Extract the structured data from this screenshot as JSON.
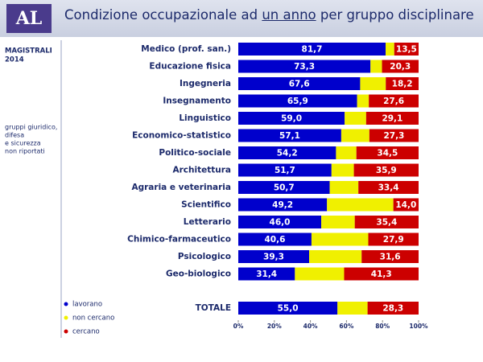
{
  "logo": "AL",
  "chart_data": {
    "type": "stacked_barh",
    "title_parts": [
      "Condizione occupazionale ad",
      "un anno",
      "per gruppo disciplinare"
    ],
    "note_top": [
      "MAGISTRALI",
      "2014"
    ],
    "note_side": [
      "gruppi giuridico,",
      "difesa",
      "e sicurezza",
      "non riportati"
    ],
    "categories": [
      "Medico (prof. san.)",
      "Educazione fisica",
      "Ingegneria",
      "Insegnamento",
      "Linguistico",
      "Economico-statistico",
      "Politico-sociale",
      "Architettura",
      "Agraria e veterinaria",
      "Scientifico",
      "Letterario",
      "Chimico-farmaceutico",
      "Psicologico",
      "Geo-biologico",
      "TOTALE"
    ],
    "series": [
      {
        "name": "lavorano",
        "color": "#0000cc",
        "values": [
          81.7,
          73.3,
          67.6,
          65.9,
          59.0,
          57.1,
          54.2,
          51.7,
          50.7,
          49.2,
          46.0,
          40.6,
          39.3,
          31.4,
          55.0
        ],
        "value_labels": [
          "81,7",
          "73,3",
          "67,6",
          "65,9",
          "59,0",
          "57,1",
          "54,2",
          "51,7",
          "50,7",
          "49,2",
          "46,0",
          "40,6",
          "39,3",
          "31,4",
          "55,0"
        ]
      },
      {
        "name": "non cercano",
        "color": "#f0f000",
        "values": [
          4.8,
          6.4,
          14.2,
          6.5,
          11.9,
          15.6,
          11.3,
          12.4,
          15.9,
          36.8,
          18.6,
          31.5,
          29.1,
          27.3,
          16.7
        ]
      },
      {
        "name": "cercano",
        "color": "#cc0000",
        "values": [
          13.5,
          20.3,
          18.2,
          27.6,
          29.1,
          27.3,
          34.5,
          35.9,
          33.4,
          14.0,
          35.4,
          27.9,
          31.6,
          41.3,
          28.3
        ],
        "value_labels": [
          "13,5",
          "20,3",
          "18,2",
          "27,6",
          "29,1",
          "27,3",
          "34,5",
          "35,9",
          "33,4",
          "14,0",
          "35,4",
          "27,9",
          "31,6",
          "41,3",
          "28,3"
        ]
      }
    ],
    "xlim": [
      0,
      100
    ],
    "xticks": [
      {
        "value": 0,
        "label": "0%"
      },
      {
        "value": 20,
        "label": "20%"
      },
      {
        "value": 40,
        "label": "40%"
      },
      {
        "value": 60,
        "label": "60%"
      },
      {
        "value": 80,
        "label": "80%"
      },
      {
        "value": 100,
        "label": "100%"
      }
    ],
    "legend": "bottom-left"
  }
}
